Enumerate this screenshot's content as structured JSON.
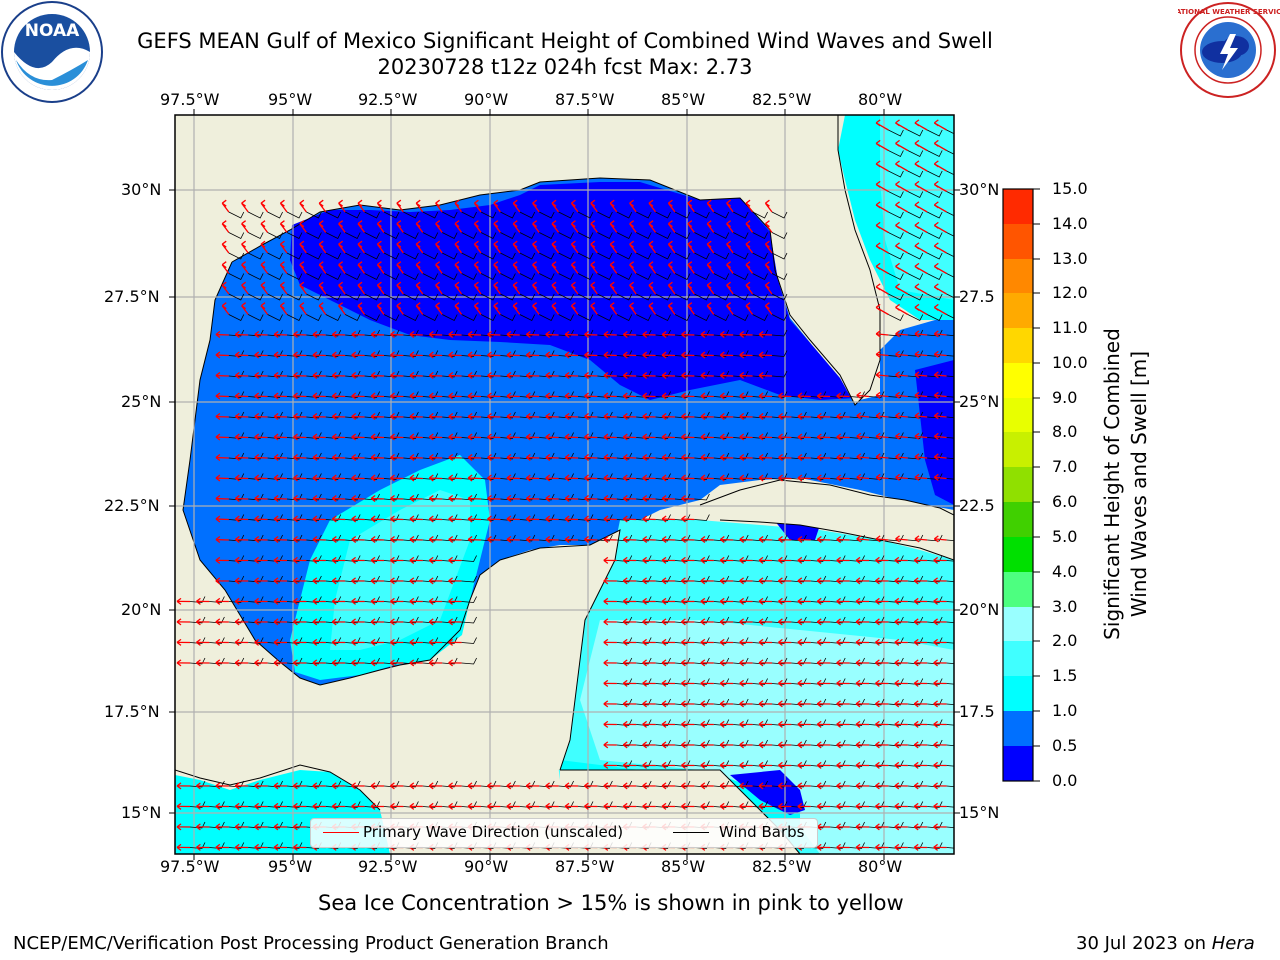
{
  "title": {
    "line1": "GEFS MEAN Gulf of Mexico Significant Height of Combined Wind Waves and Swell",
    "line2": "20230728 t12z 024h fcst   Max: 2.73"
  },
  "axes": {
    "lon_labels": [
      "97.5°W",
      "95°W",
      "92.5°W",
      "90°W",
      "87.5°W",
      "85°W",
      "82.5°W",
      "80°W"
    ],
    "lat_labels_left": [
      "30°N",
      "27.5°N",
      "25°N",
      "22.5°N",
      "20°N",
      "17.5°N",
      "15°N"
    ],
    "lat_labels_right": [
      "30°N",
      "27.5",
      "25°N",
      "22.5",
      "20°N",
      "17.5",
      "15°N"
    ]
  },
  "colorbar": {
    "title_line1": "Significant Height of Combined",
    "title_line2": "Wind Waves and Swell [m]",
    "ticks": [
      "15.0",
      "14.0",
      "13.0",
      "12.0",
      "11.0",
      "10.0",
      "9.0",
      "8.0",
      "7.0",
      "6.0",
      "5.0",
      "4.0",
      "3.0",
      "2.0",
      "1.5",
      "1.0",
      "0.5",
      "0.0"
    ],
    "colors_bottom_to_top": [
      "#0000ff",
      "#0070ff",
      "#00ffff",
      "#40ffff",
      "#99ffff",
      "#4dff80",
      "#00e000",
      "#40d000",
      "#90e000",
      "#c8f000",
      "#e8ff00",
      "#ffff00",
      "#ffd700",
      "#ffaa00",
      "#ff8800",
      "#ff5500",
      "#ff2a00",
      "#ff0000"
    ]
  },
  "legend": {
    "wave_label": "Primary Wave Direction (unscaled)",
    "wave_color": "#ff0000",
    "barb_label": "Wind Barbs",
    "barb_color": "#000000"
  },
  "map_colors": {
    "land": "#efefdc",
    "wave_0_05": "#0000ff",
    "wave_05_10": "#0070ff",
    "wave_10_15": "#00ffff",
    "wave_15_20": "#40ffff",
    "wave_20_30": "#99ffff"
  },
  "caption": "Sea Ice Concentration > 15% is shown in pink to yellow",
  "footer": {
    "left": "NCEP/EMC/Verification Post Processing Product Generation Branch",
    "right_date": "30 Jul 2023 on ",
    "right_host": "Hera"
  },
  "logos": {
    "left": "NOAA",
    "right": "NATIONAL WEATHER SERVICE"
  }
}
